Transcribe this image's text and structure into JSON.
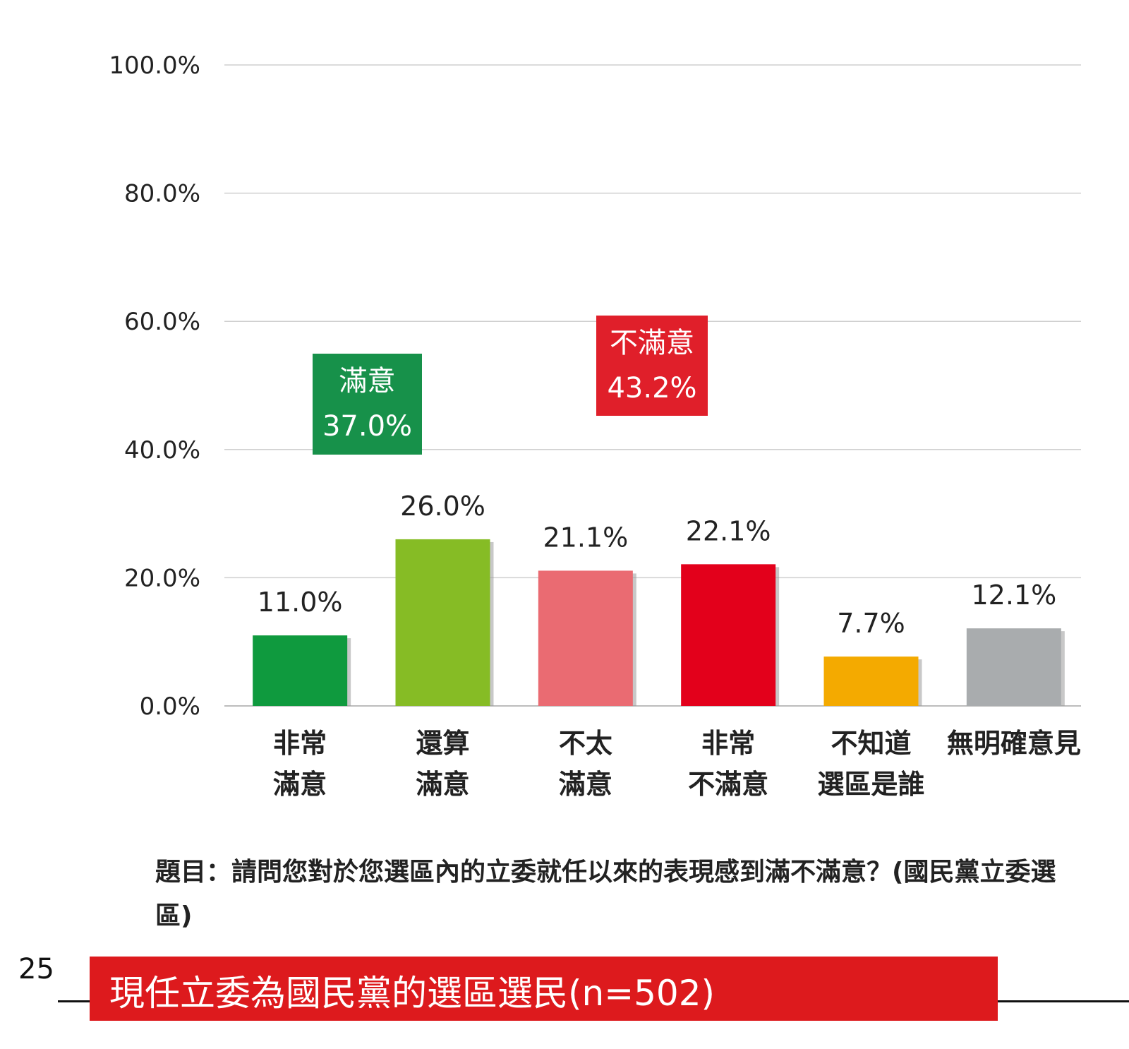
{
  "chart_data": {
    "type": "bar",
    "categories": [
      [
        "非常",
        "滿意"
      ],
      [
        "還算",
        "滿意"
      ],
      [
        "不太",
        "滿意"
      ],
      [
        "非常",
        "不滿意"
      ],
      [
        "不知道",
        "選區是誰"
      ],
      [
        "無明確意見"
      ]
    ],
    "values": [
      11.0,
      26.0,
      21.1,
      22.1,
      7.7,
      12.1
    ],
    "value_labels": [
      "11.0%",
      "26.0%",
      "21.1%",
      "22.1%",
      "7.7%",
      "12.1%"
    ],
    "colors": [
      "#0f9a3e",
      "#86bc25",
      "#ea6b72",
      "#e3001b",
      "#f4aa00",
      "#a9acae"
    ],
    "ylim": [
      0,
      100
    ],
    "yticks": [
      0,
      20,
      40,
      60,
      80,
      100
    ],
    "ytick_labels": [
      "0.0%",
      "20.0%",
      "40.0%",
      "60.0%",
      "80.0%",
      "100.0%"
    ],
    "grid": true,
    "annotations": [
      {
        "lines": [
          "滿意",
          "37.0%"
        ],
        "color": "#17914a"
      },
      {
        "lines": [
          "不滿意",
          "43.2%"
        ],
        "color": "#e01f2a"
      }
    ]
  },
  "question": "題目：請問您對於您選區內的立委就任以來的表現感到滿不滿意？(國民黨立委選區)",
  "page_number": "25",
  "footer_title": "現任立委為國民黨的選區選民(n=502)"
}
